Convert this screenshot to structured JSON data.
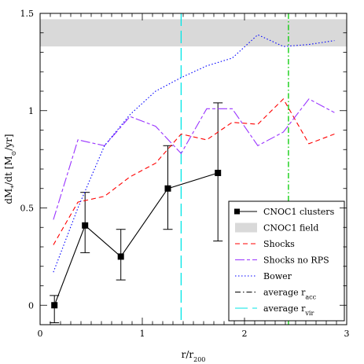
{
  "chart_data": {
    "type": "line",
    "xlabel": "r/r",
    "xlabel_sub": "200",
    "ylabel": "dM",
    "ylabel_rest": "/dt [M",
    "ylabel_tail": "/yr]",
    "ylabel_star": "*",
    "ylabel_sun": "⊙",
    "xlim": [
      0,
      3
    ],
    "ylim": [
      -0.1,
      1.5
    ],
    "x_ticks": [
      "0",
      "1",
      "2",
      "3"
    ],
    "y_ticks": [
      "0",
      "0.5",
      "1",
      "1.5"
    ],
    "field_band": {
      "name": "CNOC1 field",
      "ymin": 1.33,
      "ymax": 1.47,
      "color": "#d9d9d9"
    },
    "vlines": [
      {
        "name": "average r",
        "sub": "vir",
        "x": 1.38,
        "color": "#00e6e6",
        "style": "long-dash"
      },
      {
        "name": "average r",
        "sub": "acc",
        "x": 2.43,
        "color": "#00cc00",
        "style": "dash-dot"
      }
    ],
    "series": [
      {
        "name": "CNOC1 clusters",
        "color": "#000000",
        "style": "solid-square",
        "x": [
          0.14,
          0.44,
          0.79,
          1.25,
          1.74
        ],
        "y": [
          0.0,
          0.41,
          0.25,
          0.6,
          0.68
        ],
        "err_low": [
          0.09,
          0.14,
          0.12,
          0.21,
          0.35
        ],
        "err_high": [
          0.05,
          0.17,
          0.14,
          0.22,
          0.36
        ]
      },
      {
        "name": "Shocks",
        "color": "#ff0000",
        "style": "dash",
        "x": [
          0.13,
          0.37,
          0.63,
          0.88,
          1.13,
          1.38,
          1.63,
          1.88,
          2.13,
          2.38,
          2.63,
          2.88
        ],
        "y": [
          0.31,
          0.53,
          0.56,
          0.66,
          0.73,
          0.88,
          0.85,
          0.94,
          0.93,
          1.06,
          0.83,
          0.88
        ]
      },
      {
        "name": "Shocks no RPS",
        "color": "#9933ff",
        "style": "long-dash-short",
        "x": [
          0.13,
          0.37,
          0.63,
          0.88,
          1.13,
          1.38,
          1.63,
          1.88,
          2.13,
          2.38,
          2.63,
          2.88
        ],
        "y": [
          0.44,
          0.85,
          0.82,
          0.97,
          0.92,
          0.78,
          1.01,
          1.01,
          0.82,
          0.89,
          1.06,
          0.99
        ]
      },
      {
        "name": "Bower",
        "color": "#0000ff",
        "style": "dot",
        "x": [
          0.13,
          0.37,
          0.63,
          0.88,
          1.13,
          1.38,
          1.63,
          1.88,
          2.13,
          2.38,
          2.63,
          2.88
        ],
        "y": [
          0.17,
          0.5,
          0.82,
          0.98,
          1.1,
          1.17,
          1.23,
          1.27,
          1.39,
          1.33,
          1.34,
          1.36
        ]
      }
    ],
    "legend": {
      "position": "lower-right",
      "entries": [
        {
          "label": "CNOC1 clusters",
          "sub": ""
        },
        {
          "label": "CNOC1 field",
          "sub": ""
        },
        {
          "label": "Shocks",
          "sub": ""
        },
        {
          "label": "Shocks no RPS",
          "sub": ""
        },
        {
          "label": "Bower",
          "sub": ""
        },
        {
          "label": "average r",
          "sub": "acc"
        },
        {
          "label": "average r",
          "sub": "vir"
        }
      ]
    }
  }
}
